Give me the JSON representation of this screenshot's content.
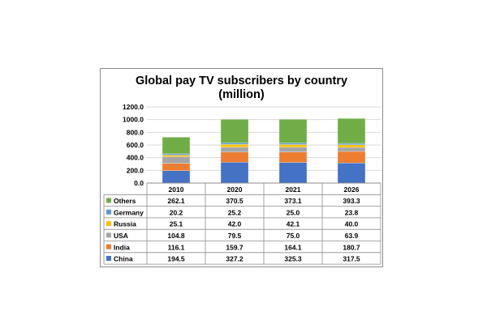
{
  "chart_data": {
    "type": "bar",
    "stacked": true,
    "title_line1": "Global pay TV subscribers by country",
    "title_line2": "(million)",
    "categories": [
      "2010",
      "2020",
      "2021",
      "2026"
    ],
    "ylim": [
      0,
      1200
    ],
    "yticks": [
      "0.0",
      "200.0",
      "400.0",
      "600.0",
      "800.0",
      "1000.0",
      "1200.0"
    ],
    "ytick_values": [
      0,
      200,
      400,
      600,
      800,
      1000,
      1200
    ],
    "grid": true,
    "legend": "data-table",
    "series": [
      {
        "name": "China",
        "color": "#4472c4",
        "values": [
          194.5,
          327.2,
          325.3,
          317.5
        ],
        "labels": [
          "194.5",
          "327.2",
          "325.3",
          "317.5"
        ]
      },
      {
        "name": "India",
        "color": "#ed7d31",
        "values": [
          116.1,
          159.7,
          164.1,
          180.7
        ],
        "labels": [
          "116.1",
          "159.7",
          "164.1",
          "180.7"
        ]
      },
      {
        "name": "USA",
        "color": "#a5a5a5",
        "values": [
          104.8,
          79.5,
          75.0,
          63.9
        ],
        "labels": [
          "104.8",
          "79.5",
          "75.0",
          "63.9"
        ]
      },
      {
        "name": "Russia",
        "color": "#ffc000",
        "values": [
          25.1,
          42.0,
          42.1,
          40.0
        ],
        "labels": [
          "25.1",
          "42.0",
          "42.1",
          "40.0"
        ]
      },
      {
        "name": "Germany",
        "color": "#5b9bd5",
        "values": [
          20.2,
          25.2,
          25.0,
          23.8
        ],
        "labels": [
          "20.2",
          "25.2",
          "25.0",
          "23.8"
        ]
      },
      {
        "name": "Others",
        "color": "#70ad47",
        "values": [
          262.1,
          370.5,
          373.1,
          393.3
        ],
        "labels": [
          "262.1",
          "370.5",
          "373.1",
          "393.3"
        ]
      }
    ]
  }
}
